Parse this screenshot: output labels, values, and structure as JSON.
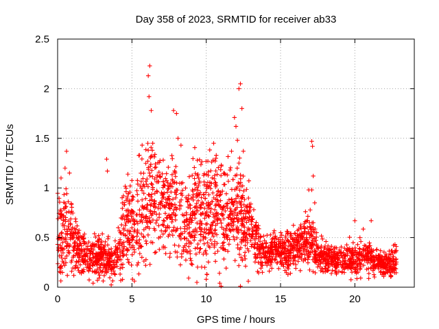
{
  "chart_data": {
    "type": "scatter",
    "title": "Day 358 of 2023, SRMTID for receiver ab33",
    "xlabel": "GPS time / hours",
    "ylabel": "SRMTID / TECUs",
    "xlim": [
      0,
      24
    ],
    "ylim": [
      0,
      2.5
    ],
    "xticks": [
      "0",
      "5",
      "10",
      "15",
      "20"
    ],
    "yticks": [
      "0",
      "0.5",
      "1",
      "1.5",
      "2",
      "2.5"
    ],
    "grid": true,
    "marker": "+",
    "color": "#ff0000",
    "series": [
      {
        "name": "SRMTID",
        "density_profile": {
          "hours": [
            0,
            0.5,
            1,
            1.5,
            2,
            2.5,
            3,
            3.5,
            4,
            4.5,
            5,
            5.5,
            6,
            6.5,
            7,
            7.5,
            8,
            8.5,
            9,
            9.5,
            10,
            10.5,
            11,
            11.5,
            12,
            12.5,
            13,
            13.5,
            14,
            14.5,
            15,
            15.5,
            16,
            16.5,
            17,
            17.5,
            18,
            18.5,
            19,
            19.5,
            20,
            20.5,
            21,
            21.5,
            22,
            22.5
          ],
          "median": [
            0.55,
            0.6,
            0.5,
            0.35,
            0.3,
            0.32,
            0.3,
            0.28,
            0.3,
            0.6,
            0.65,
            0.7,
            0.85,
            0.95,
            0.9,
            0.75,
            0.85,
            0.65,
            0.65,
            0.8,
            0.75,
            0.85,
            0.75,
            0.7,
            0.8,
            0.75,
            0.55,
            0.4,
            0.32,
            0.35,
            0.4,
            0.38,
            0.42,
            0.45,
            0.5,
            0.35,
            0.3,
            0.27,
            0.26,
            0.28,
            0.3,
            0.32,
            0.3,
            0.25,
            0.22,
            0.25
          ],
          "spread": [
            0.3,
            0.3,
            0.25,
            0.15,
            0.12,
            0.15,
            0.12,
            0.12,
            0.15,
            0.3,
            0.3,
            0.35,
            0.4,
            0.4,
            0.35,
            0.3,
            0.35,
            0.3,
            0.3,
            0.35,
            0.4,
            0.35,
            0.35,
            0.3,
            0.35,
            0.35,
            0.25,
            0.15,
            0.12,
            0.12,
            0.15,
            0.15,
            0.15,
            0.15,
            0.2,
            0.12,
            0.1,
            0.1,
            0.1,
            0.1,
            0.12,
            0.12,
            0.12,
            0.08,
            0.08,
            0.1
          ]
        },
        "outliers": [
          [
            0.6,
            1.37
          ],
          [
            0.5,
            1.2
          ],
          [
            0.8,
            1.15
          ],
          [
            3.3,
            1.29
          ],
          [
            3.35,
            1.17
          ],
          [
            5.5,
            1.33
          ],
          [
            6.1,
            2.13
          ],
          [
            6.2,
            2.23
          ],
          [
            6.15,
            1.92
          ],
          [
            6.3,
            1.78
          ],
          [
            6.4,
            1.45
          ],
          [
            7.8,
            1.78
          ],
          [
            8.0,
            1.75
          ],
          [
            8.1,
            1.5
          ],
          [
            8.3,
            1.43
          ],
          [
            10.5,
            1.45
          ],
          [
            10.6,
            1.27
          ],
          [
            11.9,
            1.71
          ],
          [
            12.2,
            2.0
          ],
          [
            12.3,
            2.05
          ],
          [
            12.0,
            1.62
          ],
          [
            12.1,
            1.48
          ],
          [
            12.4,
            1.8
          ],
          [
            12.2,
            1.25
          ],
          [
            17.1,
            1.47
          ],
          [
            17.15,
            1.42
          ],
          [
            17.2,
            1.12
          ],
          [
            17.1,
            0.98
          ],
          [
            17.3,
            0.85
          ],
          [
            10.0,
            0.08
          ],
          [
            9.9,
            0.2
          ],
          [
            11.0,
            0.01
          ],
          [
            12.3,
            0.01
          ],
          [
            16.9,
            0.98
          ],
          [
            20.0,
            0.67
          ],
          [
            21.1,
            0.67
          ],
          [
            22.7,
            0.43
          ]
        ]
      }
    ]
  }
}
